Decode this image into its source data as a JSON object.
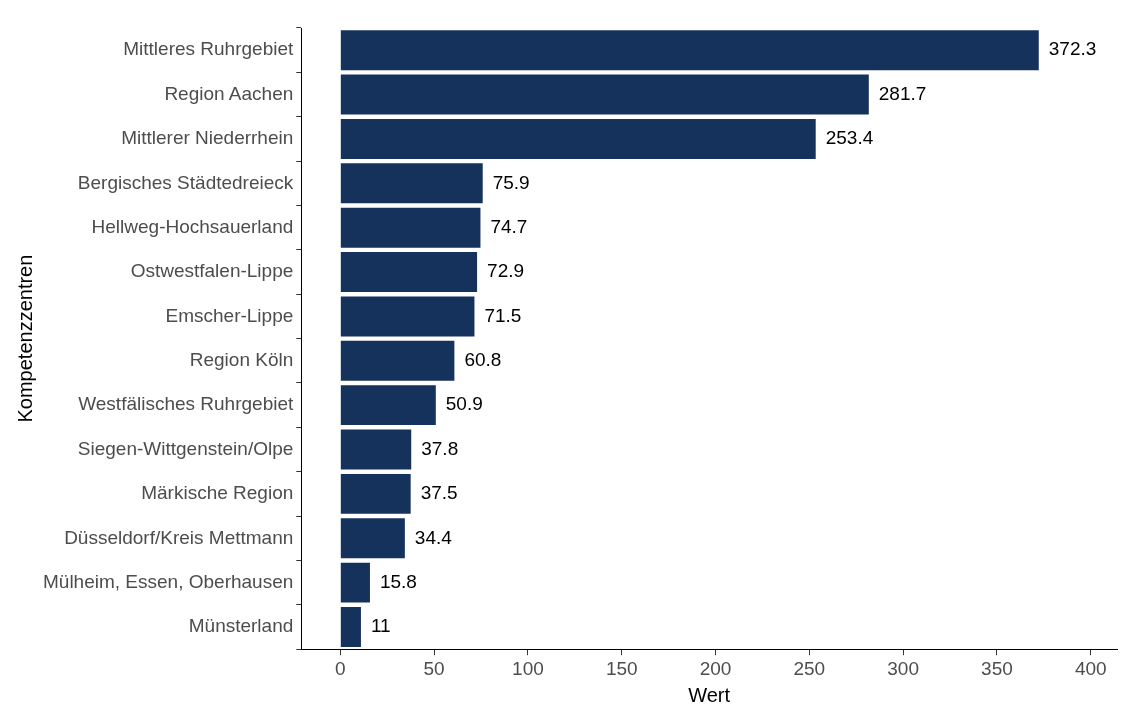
{
  "chart_data": {
    "type": "bar",
    "orientation": "horizontal",
    "xlabel": "Wert",
    "ylabel": "Kompetenzzentren",
    "categories": [
      "Mittleres Ruhrgebiet",
      "Region Aachen",
      "Mittlerer Niederrhein",
      "Bergisches Städtedreieck",
      "Hellweg-Hochsauerland",
      "Ostwestfalen-Lippe",
      "Emscher-Lippe",
      "Region Köln",
      "Westfälisches Ruhrgebiet",
      "Siegen-Wittgenstein/Olpe",
      "Märkische Region",
      "Düsseldorf/Kreis Mettmann",
      "Mülheim, Essen, Oberhausen",
      "Münsterland"
    ],
    "values": [
      372.3,
      281.7,
      253.4,
      75.9,
      74.7,
      72.9,
      71.5,
      60.8,
      50.9,
      37.8,
      37.5,
      34.4,
      15.8,
      11
    ],
    "color": "#14325c",
    "xlim": [
      -20.8,
      414
    ],
    "xticks": [
      0,
      50,
      100,
      150,
      200,
      250,
      300,
      350,
      400
    ],
    "data_labels": true,
    "grid": false
  }
}
